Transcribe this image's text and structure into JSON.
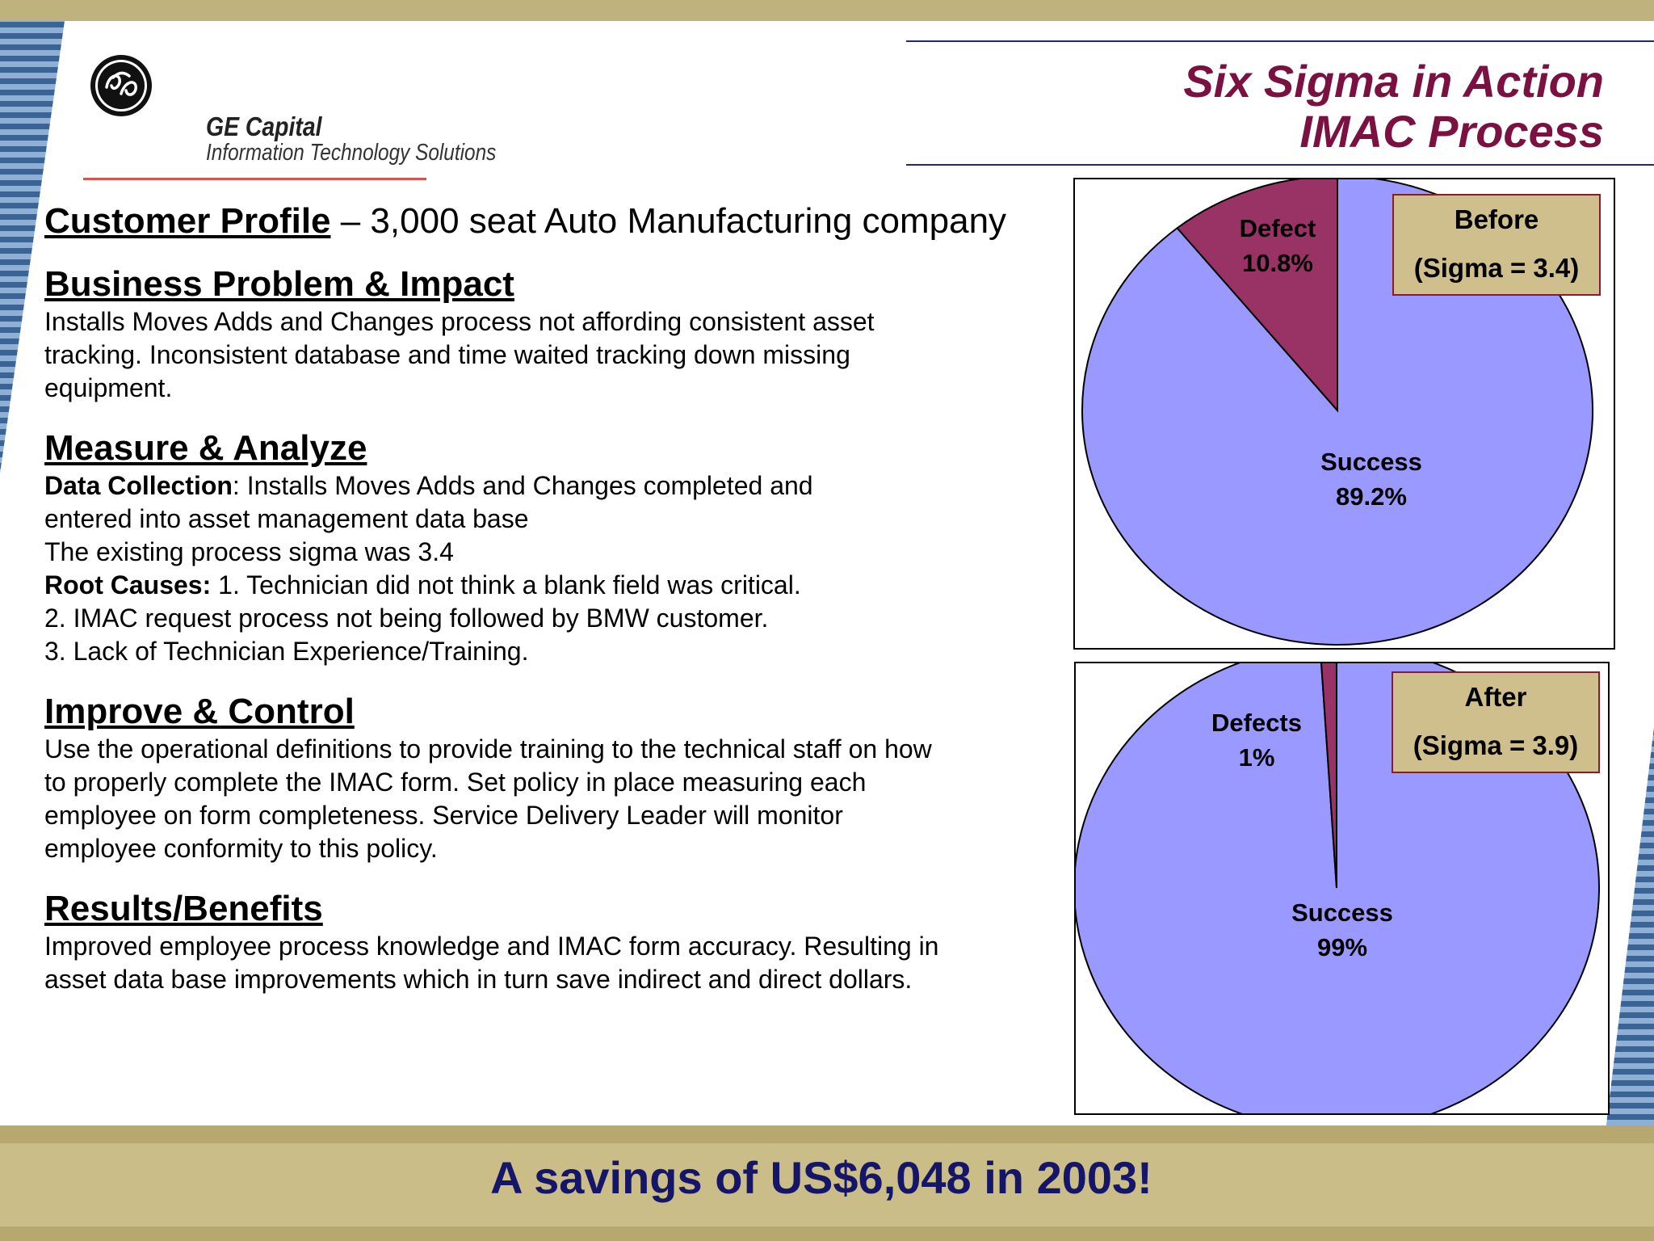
{
  "brand": {
    "name": "GE Capital",
    "subtitle": "Information Technology Solutions"
  },
  "title": {
    "line1": "Six Sigma in Action",
    "line2": "IMAC Process"
  },
  "customer_profile": {
    "heading": "Customer Profile",
    "text": " – 3,000 seat Auto Manufacturing company"
  },
  "business_problem": {
    "heading": "Business Problem & Impact",
    "text": "Installs Moves Adds and Changes process not affording consistent asset tracking. Inconsistent database and time waited tracking down missing equipment."
  },
  "measure_analyze": {
    "heading": "Measure & Analyze",
    "data_collection_label": "Data Collection",
    "data_collection_text": ": Installs Moves Adds and Changes completed and entered into asset management data base",
    "sigma_line": "The existing process sigma was 3.4",
    "root_causes_label": "Root Causes:",
    "root_cause_1": " 1. Technician did not think a blank field was critical.",
    "root_cause_2": "2. IMAC request process not being followed by BMW customer.",
    "root_cause_3": "3. Lack of Technician Experience/Training."
  },
  "improve_control": {
    "heading": "Improve & Control",
    "text": "Use the operational definitions to provide training to the technical staff on how to  properly complete the IMAC form. Set policy in place measuring each employee on form completeness. Service Delivery Leader will monitor employee conformity to this policy."
  },
  "results": {
    "heading": "Results/Benefits",
    "text": "Improved employee process knowledge and IMAC form accuracy. Resulting in asset data base improvements which in turn save indirect and direct dollars."
  },
  "savings": "A savings of US$6,048 in 2003!",
  "colors": {
    "success": "#9999ff",
    "defect": "#993366",
    "title": "#7a1140",
    "savings": "#15166a"
  },
  "chart_data": [
    {
      "type": "pie",
      "title": "",
      "legend_box": {
        "line1": "Before",
        "line2": "(Sigma = 3.4)"
      },
      "slices": [
        {
          "label": "Defect",
          "value": 10.8,
          "value_label": "10.8%"
        },
        {
          "label": "Success",
          "value": 89.2,
          "value_label": "89.2%"
        }
      ]
    },
    {
      "type": "pie",
      "title": "",
      "legend_box": {
        "line1": "After",
        "line2": "(Sigma = 3.9)"
      },
      "slices": [
        {
          "label": "Defects",
          "value": 1,
          "value_label": "1%"
        },
        {
          "label": "Success",
          "value": 99,
          "value_label": "99%"
        }
      ]
    }
  ]
}
